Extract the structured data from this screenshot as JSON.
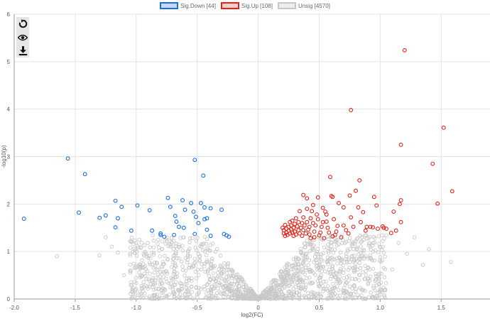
{
  "legend": [
    {
      "label": "Sig.Down [44]",
      "color": "#1a6fe0",
      "fill": "#c9d9f5"
    },
    {
      "label": "Sig.Up [108]",
      "color": "#e0261a",
      "fill": "#f5cfcb"
    },
    {
      "label": "Unsig [4570]",
      "color": "#c8c8c8",
      "fill": "#ececec"
    }
  ],
  "toolbar": {
    "icons": [
      "reset-icon",
      "eye-icon",
      "download-icon"
    ]
  },
  "chart_data": {
    "type": "scatter",
    "title": "",
    "xlabel": "log2(FC)",
    "ylabel": "-log10(p)",
    "xlim": [
      -2.0,
      1.9
    ],
    "ylim": [
      0,
      6
    ],
    "xticks": [
      "-2.0",
      "-1.5",
      "-1.0",
      "-0.5",
      "0",
      "0.5",
      "1.0",
      "1.5"
    ],
    "yticks": [
      "0",
      "1",
      "2",
      "3",
      "4",
      "5",
      "6"
    ],
    "grid": true,
    "legend_position": "top-center",
    "series": [
      {
        "name": "Sig.Down [44]",
        "color": "#1a6fe0",
        "points": [
          [
            -1.92,
            1.69
          ],
          [
            -1.56,
            2.96
          ],
          [
            -1.47,
            1.82
          ],
          [
            -1.42,
            2.63
          ],
          [
            -1.3,
            1.71
          ],
          [
            -1.25,
            1.76
          ],
          [
            -1.17,
            2.07
          ],
          [
            -1.17,
            1.51
          ],
          [
            -1.15,
            1.7
          ],
          [
            -1.12,
            1.94
          ],
          [
            -1.04,
            1.44
          ],
          [
            -0.99,
            1.97
          ],
          [
            -0.89,
            1.87
          ],
          [
            -0.87,
            1.44
          ],
          [
            -0.8,
            1.38
          ],
          [
            -0.8,
            1.35
          ],
          [
            -0.77,
            1.31
          ],
          [
            -0.74,
            2.13
          ],
          [
            -0.72,
            1.94
          ],
          [
            -0.69,
            1.35
          ],
          [
            -0.68,
            1.75
          ],
          [
            -0.67,
            1.63
          ],
          [
            -0.65,
            1.52
          ],
          [
            -0.62,
            2.08
          ],
          [
            -0.61,
            1.5
          ],
          [
            -0.6,
            1.88
          ],
          [
            -0.55,
            2.02
          ],
          [
            -0.53,
            1.84
          ],
          [
            -0.52,
            2.93
          ],
          [
            -0.52,
            1.37
          ],
          [
            -0.51,
            1.73
          ],
          [
            -0.49,
            1.6
          ],
          [
            -0.47,
            2.02
          ],
          [
            -0.45,
            2.6
          ],
          [
            -0.44,
            1.68
          ],
          [
            -0.44,
            1.93
          ],
          [
            -0.42,
            1.7
          ],
          [
            -0.42,
            1.46
          ],
          [
            -0.39,
            1.91
          ],
          [
            -0.39,
            1.33
          ],
          [
            -0.3,
            1.88
          ],
          [
            -0.28,
            1.37
          ],
          [
            -0.26,
            1.34
          ],
          [
            -0.24,
            1.31
          ]
        ]
      },
      {
        "name": "Sig.Up [108]",
        "color": "#e0261a",
        "points": [
          [
            1.2,
            5.24
          ],
          [
            0.76,
            3.98
          ],
          [
            1.52,
            3.61
          ],
          [
            1.17,
            3.25
          ],
          [
            1.43,
            2.85
          ],
          [
            1.59,
            2.27
          ],
          [
            1.47,
            2.01
          ],
          [
            0.59,
            2.57
          ],
          [
            0.83,
            2.5
          ],
          [
            0.8,
            2.28
          ],
          [
            0.6,
            2.17
          ],
          [
            0.61,
            2.15
          ],
          [
            0.75,
            2.18
          ],
          [
            0.37,
            2.19
          ],
          [
            0.4,
            2.12
          ],
          [
            0.49,
            2.14
          ],
          [
            0.7,
            1.93
          ],
          [
            0.66,
            2.02
          ],
          [
            0.45,
            1.98
          ],
          [
            1.17,
            2.08
          ],
          [
            1.16,
            2.0
          ],
          [
            1.11,
            1.84
          ],
          [
            1.17,
            1.62
          ],
          [
            1.02,
            1.53
          ],
          [
            0.97,
            1.97
          ],
          [
            0.95,
            2.15
          ],
          [
            0.86,
            1.83
          ],
          [
            0.82,
            1.93
          ],
          [
            0.92,
            1.52
          ],
          [
            0.88,
            1.44
          ],
          [
            0.89,
            1.52
          ],
          [
            0.94,
            1.51
          ],
          [
            1.03,
            1.5
          ],
          [
            1.05,
            1.48
          ],
          [
            1.09,
            1.39
          ],
          [
            1.13,
            1.44
          ],
          [
            0.98,
            1.48
          ],
          [
            0.84,
            1.62
          ],
          [
            0.76,
            1.72
          ],
          [
            0.78,
            1.52
          ],
          [
            0.72,
            1.45
          ],
          [
            0.74,
            1.38
          ],
          [
            0.65,
            1.54
          ],
          [
            0.64,
            1.42
          ],
          [
            0.63,
            1.35
          ],
          [
            0.61,
            1.32
          ],
          [
            0.58,
            1.4
          ],
          [
            0.57,
            1.5
          ],
          [
            0.56,
            1.63
          ],
          [
            0.56,
            1.78
          ],
          [
            0.55,
            1.84
          ],
          [
            0.53,
            1.92
          ],
          [
            0.53,
            1.62
          ],
          [
            0.52,
            1.52
          ],
          [
            0.51,
            1.4
          ],
          [
            0.5,
            1.34
          ],
          [
            0.49,
            1.68
          ],
          [
            0.48,
            1.78
          ],
          [
            0.47,
            1.55
          ],
          [
            0.46,
            1.42
          ],
          [
            0.45,
            1.6
          ],
          [
            0.44,
            1.85
          ],
          [
            0.43,
            1.7
          ],
          [
            0.42,
            1.52
          ],
          [
            0.42,
            1.36
          ],
          [
            0.41,
            1.46
          ],
          [
            0.4,
            1.62
          ],
          [
            0.4,
            1.9
          ],
          [
            0.39,
            1.38
          ],
          [
            0.38,
            1.55
          ],
          [
            0.37,
            1.72
          ],
          [
            0.37,
            1.45
          ],
          [
            0.36,
            1.33
          ],
          [
            0.36,
            1.6
          ],
          [
            0.35,
            1.5
          ],
          [
            0.34,
            1.38
          ],
          [
            0.34,
            1.85
          ],
          [
            0.33,
            1.62
          ],
          [
            0.33,
            1.45
          ],
          [
            0.32,
            1.53
          ],
          [
            0.31,
            1.36
          ],
          [
            0.31,
            1.7
          ],
          [
            0.3,
            1.42
          ],
          [
            0.3,
            1.58
          ],
          [
            0.29,
            1.5
          ],
          [
            0.29,
            1.33
          ],
          [
            0.28,
            1.65
          ],
          [
            0.28,
            1.4
          ],
          [
            0.27,
            1.47
          ],
          [
            0.27,
            1.55
          ],
          [
            0.26,
            1.38
          ],
          [
            0.26,
            1.62
          ],
          [
            0.25,
            1.44
          ],
          [
            0.25,
            1.52
          ],
          [
            0.24,
            1.35
          ],
          [
            0.23,
            1.48
          ],
          [
            0.23,
            1.4
          ],
          [
            0.22,
            1.56
          ],
          [
            0.22,
            1.33
          ],
          [
            0.21,
            1.45
          ],
          [
            0.21,
            1.38
          ],
          [
            0.2,
            1.5
          ],
          [
            0.43,
            1.28
          ],
          [
            0.46,
            1.3
          ],
          [
            0.54,
            1.28
          ],
          [
            0.68,
            1.3
          ],
          [
            0.7,
            1.55
          ],
          [
            0.62,
            1.68
          ]
        ]
      },
      {
        "name": "Unsig [4570]",
        "color": "#c8c8c8",
        "generated_from": "v-shaped cloud below significance threshold",
        "points": [
          [
            -1.65,
            0.9
          ],
          [
            -1.3,
            0.92
          ],
          [
            -1.2,
            1.1
          ],
          [
            -1.25,
            1.3
          ],
          [
            -1.1,
            0.5
          ],
          [
            -1.05,
            0.95
          ],
          [
            -0.95,
            0.65
          ],
          [
            -1.15,
            0.98
          ],
          [
            1.22,
            0.95
          ],
          [
            1.28,
            1.3
          ],
          [
            1.58,
            0.78
          ],
          [
            1.1,
            0.62
          ],
          [
            1.15,
            1.18
          ],
          [
            1.35,
            0.72
          ],
          [
            1.4,
            1.05
          ]
        ]
      }
    ]
  }
}
